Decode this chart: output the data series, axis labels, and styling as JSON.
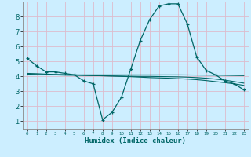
{
  "xlabel": "Humidex (Indice chaleur)",
  "bg_color": "#cceeff",
  "grid_color": "#ddbbcc",
  "line_color": "#006666",
  "xlim": [
    -0.5,
    23.5
  ],
  "ylim": [
    0.5,
    9.0
  ],
  "xticks": [
    0,
    1,
    2,
    3,
    4,
    5,
    6,
    7,
    8,
    9,
    10,
    11,
    12,
    13,
    14,
    15,
    16,
    17,
    18,
    19,
    20,
    21,
    22,
    23
  ],
  "yticks": [
    1,
    2,
    3,
    4,
    5,
    6,
    7,
    8
  ],
  "line1_x": [
    0,
    1,
    2,
    3,
    4,
    5,
    6,
    7,
    8,
    9,
    10,
    11,
    12,
    13,
    14,
    15,
    16,
    17,
    18,
    19,
    20,
    21,
    22,
    23
  ],
  "line1_y": [
    5.2,
    4.7,
    4.3,
    4.3,
    4.2,
    4.1,
    3.7,
    3.5,
    1.1,
    1.6,
    2.6,
    4.5,
    6.4,
    7.8,
    8.7,
    8.85,
    8.85,
    7.5,
    5.3,
    4.4,
    4.1,
    3.7,
    3.5,
    3.1
  ],
  "line2_x": [
    0,
    1,
    2,
    3,
    4,
    5,
    6,
    7,
    8,
    9,
    10,
    11,
    12,
    13,
    14,
    15,
    16,
    17,
    18,
    19,
    20,
    21,
    22,
    23
  ],
  "line2_y": [
    4.15,
    4.13,
    4.1,
    4.1,
    4.08,
    4.07,
    4.06,
    4.05,
    4.04,
    4.03,
    4.02,
    4.01,
    4.0,
    4.0,
    3.99,
    3.98,
    3.97,
    3.95,
    3.92,
    3.88,
    3.82,
    3.75,
    3.65,
    3.55
  ],
  "line3_x": [
    0,
    1,
    2,
    3,
    4,
    5,
    6,
    7,
    8,
    9,
    10,
    11,
    12,
    13,
    14,
    15,
    16,
    17,
    18,
    19,
    20,
    21,
    22,
    23
  ],
  "line3_y": [
    4.2,
    4.18,
    4.15,
    4.13,
    4.12,
    4.1,
    4.08,
    4.06,
    4.04,
    4.02,
    4.0,
    3.98,
    3.95,
    3.92,
    3.9,
    3.88,
    3.85,
    3.82,
    3.78,
    3.72,
    3.65,
    3.58,
    3.5,
    3.4
  ],
  "line4_x": [
    0,
    2,
    4,
    10,
    16,
    20,
    23
  ],
  "line4_y": [
    4.1,
    4.1,
    4.1,
    4.1,
    4.1,
    4.08,
    4.05
  ]
}
